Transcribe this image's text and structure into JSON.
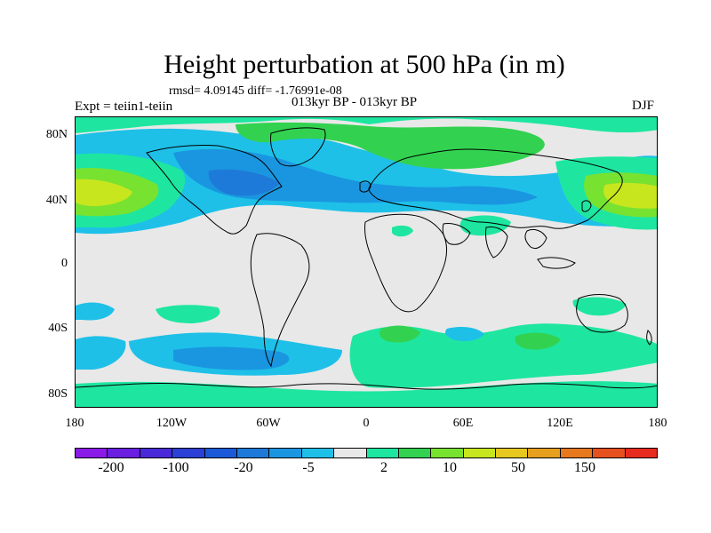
{
  "title": "Height perturbation at 500 hPa (in m)",
  "stats": "rmsd= 4.09145 diff= -1.76991e-08",
  "experiment": "Expt = teiin1-teiin",
  "period": "013kyr BP - 013kyr BP",
  "season": "DJF",
  "map": {
    "projection": "cylindrical equidistant",
    "lon_range": [
      -180,
      180
    ],
    "lat_range": [
      -90,
      90
    ],
    "lat_ticks": [
      "80N",
      "40N",
      "0",
      "40S",
      "80S"
    ],
    "lon_ticks": [
      "180",
      "120W",
      "60W",
      "0",
      "60E",
      "120E",
      "180"
    ],
    "background_color": "#e8e8e8"
  },
  "colorbar": {
    "colors": [
      "#8a1ae8",
      "#6a1fe0",
      "#4a2ad8",
      "#2a40d6",
      "#1a5ad8",
      "#1e7ad8",
      "#1a96e0",
      "#1ec0e8",
      "#e8e8e8",
      "#1ee6a0",
      "#32d250",
      "#78e230",
      "#c8e61e",
      "#e6c81e",
      "#e6a01e",
      "#e6781e",
      "#e6501e",
      "#e62a1e"
    ],
    "labels": [
      "-200",
      "-100",
      "-20",
      "-5",
      "2",
      "10",
      "50",
      "150"
    ]
  }
}
